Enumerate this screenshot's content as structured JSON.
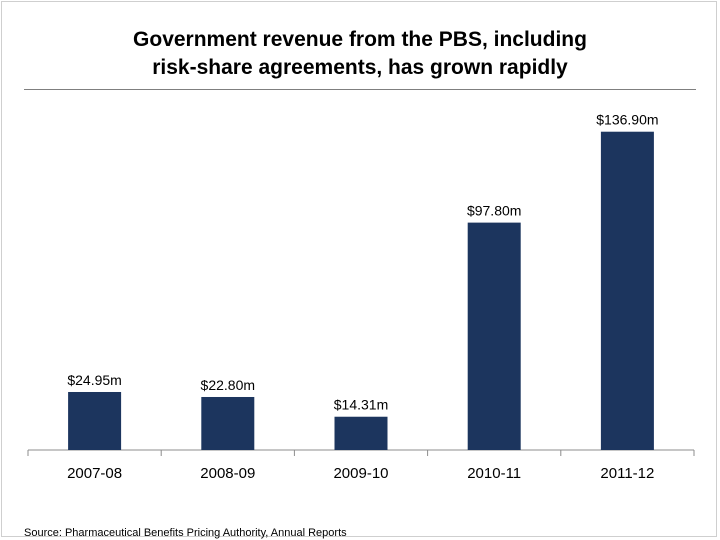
{
  "title_line1": "Government revenue from the PBS, including",
  "title_line2": "risk-share agreements, has grown rapidly",
  "source": "Source: Pharmaceutical Benefits Pricing Authority, Annual Reports",
  "colors": {
    "bar": "#1c355e",
    "axis": "#8c8c8c",
    "rule": "#7f7f7f"
  },
  "chart_data": {
    "type": "bar",
    "categories": [
      "2007-08",
      "2008-09",
      "2009-10",
      "2010-11",
      "2011-12"
    ],
    "values": [
      24.95,
      22.8,
      14.31,
      97.8,
      136.9
    ],
    "data_labels": [
      "$24.95m",
      "$22.80m",
      "$14.31m",
      "$97.80m",
      "$136.90m"
    ],
    "title": "Government revenue from the PBS, including risk-share agreements, has grown rapidly",
    "xlabel": "",
    "ylabel": "",
    "ylim": [
      0,
      160
    ],
    "grid": false,
    "legend": "none"
  }
}
